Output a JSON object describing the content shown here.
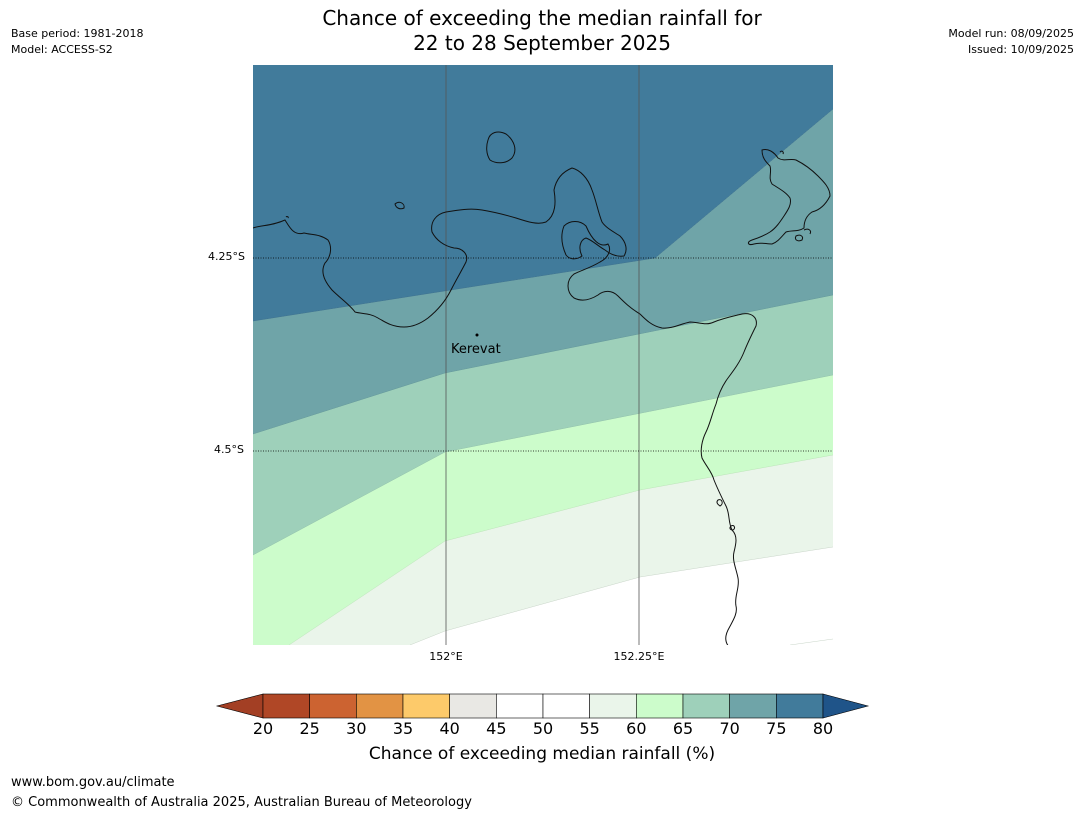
{
  "header": {
    "title_line1": "Chance of exceeding the median rainfall for",
    "title_line2": "22 to 28 September 2025",
    "base_period": "Base period: 1981-2018",
    "model": "Model: ACCESS-S2",
    "model_run": "Model run: 08/09/2025",
    "issued": "Issued: 10/09/2025"
  },
  "map": {
    "lat_labels": [
      "4.25°S",
      "4.5°S"
    ],
    "lon_labels": [
      "152°E",
      "152.25°E"
    ],
    "place": "Kerevat",
    "band_colors": {
      "75-80": "#417b9b",
      "70-75": "#6fa4a8",
      "65-70": "#9ed0ba",
      "60-65": "#ccfccb",
      "55-60": "#eaf5ea",
      "50-55": "#ffffff"
    }
  },
  "colorbar": {
    "label": "Chance of exceeding median rainfall (%)",
    "ticks": [
      "20",
      "25",
      "30",
      "35",
      "40",
      "45",
      "50",
      "55",
      "60",
      "65",
      "70",
      "75",
      "80"
    ],
    "colors": [
      "#b04726",
      "#cc6331",
      "#e29344",
      "#fdca6a",
      "#e9e8e4",
      "#ffffff",
      "#ffffff",
      "#eaf5ea",
      "#ccfccb",
      "#9ed0ba",
      "#6fa4a8",
      "#417b9b"
    ],
    "under_color": "#a33f24",
    "over_color": "#1f5489"
  },
  "footer": {
    "url": "www.bom.gov.au/climate",
    "copyright": "© Commonwealth of Australia 2025, Australian Bureau of Meteorology"
  }
}
